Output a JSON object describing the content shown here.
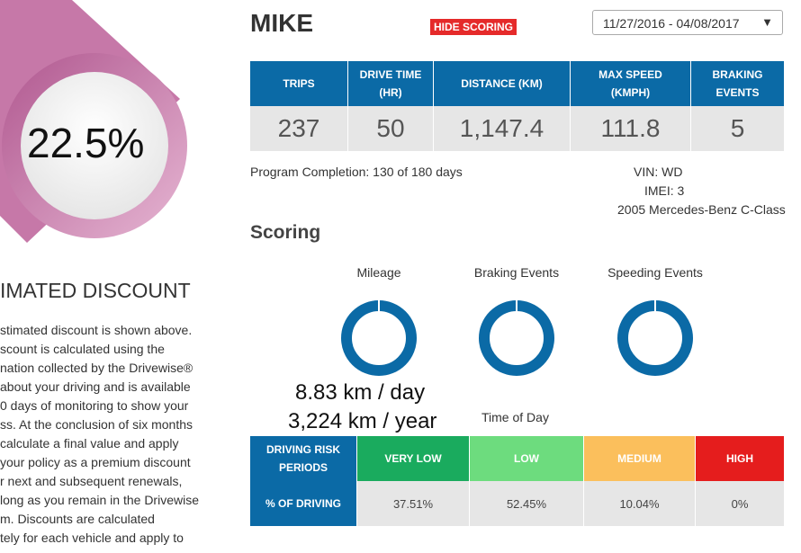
{
  "discount": {
    "value": "22.5%",
    "title": "IMATED DISCOUNT",
    "text_lines": [
      "stimated discount is shown above.",
      "scount is calculated using the",
      "nation collected by the Drivewise®",
      "about your driving and is available",
      "0 days of monitoring to show your",
      "ss. At the conclusion of six months",
      "calculate a final value and apply",
      "your policy as a premium discount",
      "r next and subsequent renewals,",
      "long as you remain in the Drivewise",
      "m. Discounts are calculated",
      "tely for each vehicle and apply to"
    ]
  },
  "header": {
    "name": "MIKE",
    "hide_scoring": "HIDE SCORING",
    "date_range": "11/27/2016 - 04/08/2017"
  },
  "stats": {
    "headers": [
      "TRIPS",
      "DRIVE TIME (HR)",
      "DISTANCE (KM)",
      "MAX SPEED (KMPH)",
      "BRAKING EVENTS"
    ],
    "values": [
      "237",
      "50",
      "1,147.4",
      "111.8",
      "5"
    ]
  },
  "program_completion": "Program Completion: 130 of 180 days",
  "vehicle": {
    "vin": "VIN: WD",
    "imei": "IMEI: 3",
    "model": "2005 Mercedes-Benz C-Class"
  },
  "scoring": {
    "title": "Scoring",
    "gauges": [
      "Mileage",
      "Braking Events",
      "Speeding Events"
    ],
    "mileage_day": "8.83 km / day",
    "mileage_year": "3,224 km / year"
  },
  "time_of_day": {
    "title": "Time of Day",
    "headers": [
      "DRIVING RISK PERIODS",
      "VERY LOW",
      "LOW",
      "MEDIUM",
      "HIGH"
    ],
    "row_label": "% OF DRIVING",
    "values": [
      "37.51%",
      "52.45%",
      "10.04%",
      "0%"
    ]
  }
}
